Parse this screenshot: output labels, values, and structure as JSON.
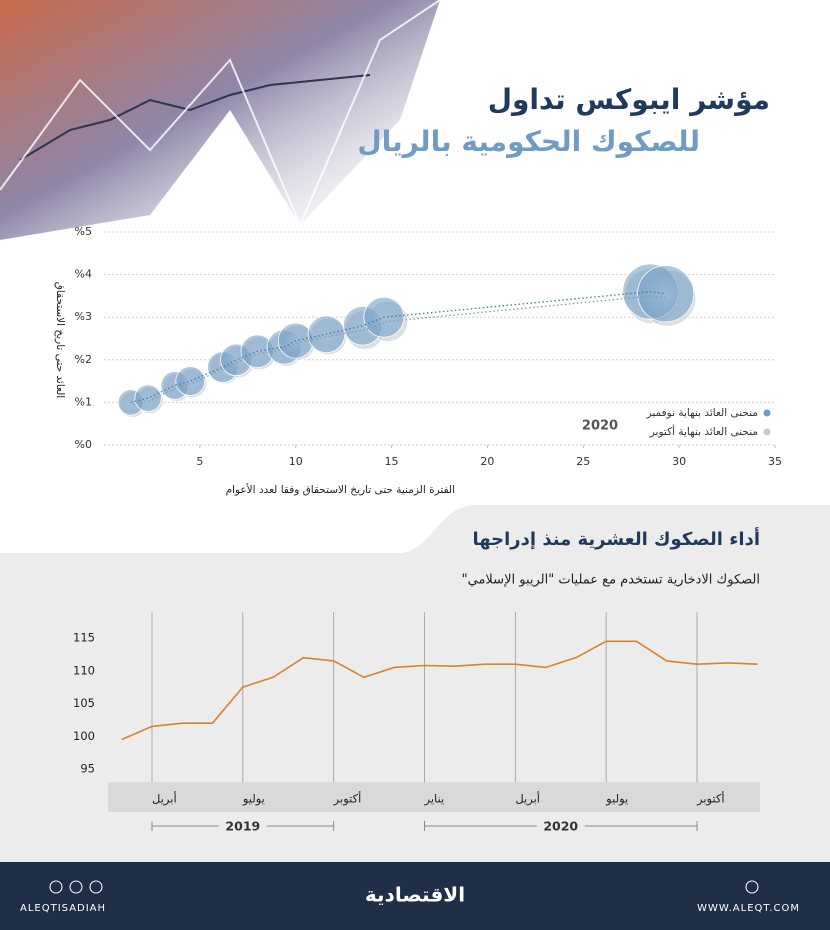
{
  "header": {
    "title_line1": "مؤشر ايبوكس تداول",
    "title_line2": "للصكوك الحكومية بالريال"
  },
  "chart_data": [
    {
      "type": "scatter",
      "annotation": "2020",
      "x_label": "الفترة الزمنية حتى تاريخ الاستحقاق وفقا لعدد الأعوام",
      "y_label": "العائد حتى تاريخ الاستحقاق",
      "xlim": [
        0,
        35
      ],
      "xticks": [
        5,
        10,
        15,
        20,
        25,
        30,
        35
      ],
      "ylim": [
        0,
        5
      ],
      "yticks": [
        {
          "value": 0,
          "label": "%0"
        },
        {
          "value": 1,
          "label": "%1"
        },
        {
          "value": 2,
          "label": "%2"
        },
        {
          "value": 3,
          "label": "%3"
        },
        {
          "value": 4,
          "label": "%4"
        },
        {
          "value": 5,
          "label": "%5"
        }
      ],
      "grid": true,
      "legend": "bottom-right",
      "series": [
        {
          "name": "منحنى العائد بنهاية أكتوبر",
          "color": "#c4c9d0",
          "x": [
            1.5,
            2.4,
            3.8,
            4.6,
            6.3,
            7.0,
            8.1,
            9.5,
            10.1,
            11.7,
            13.6,
            14.8,
            28.6,
            29.4
          ],
          "values": [
            0.95,
            1.05,
            1.35,
            1.45,
            1.8,
            1.95,
            2.15,
            2.25,
            2.4,
            2.55,
            2.7,
            2.9,
            3.5,
            3.45
          ]
        },
        {
          "name": "منحنى العائد بنهاية نوفمبر",
          "color": "#6f9cc4",
          "x": [
            1.4,
            2.3,
            3.7,
            4.5,
            6.2,
            6.9,
            8.0,
            9.4,
            10.0,
            11.6,
            13.5,
            14.6,
            28.5,
            29.3
          ],
          "values": [
            1.0,
            1.1,
            1.4,
            1.5,
            1.83,
            2.0,
            2.2,
            2.3,
            2.45,
            2.6,
            2.8,
            3.0,
            3.6,
            3.55
          ]
        }
      ]
    },
    {
      "type": "line",
      "title": "أداء الصكوك العشرية منذ إدراجها",
      "subtitle": "الصكوك الادخارية تستخدم مع عمليات \"الريبو الإسلامي\"",
      "x": [
        "2019-03",
        "2019-04",
        "2019-05",
        "2019-06",
        "2019-07",
        "2019-08",
        "2019-09",
        "2019-10",
        "2019-11",
        "2019-12",
        "2020-01",
        "2020-02",
        "2020-03",
        "2020-04",
        "2020-05",
        "2020-06",
        "2020-07",
        "2020-08",
        "2020-09",
        "2020-10",
        "2020-11",
        "2020-12"
      ],
      "values": [
        99.5,
        101.5,
        102,
        102,
        107.5,
        109,
        112,
        111.5,
        109,
        110.5,
        110.8,
        110.7,
        111,
        111,
        110.5,
        112,
        114.5,
        114.5,
        111.5,
        111,
        111.2,
        111
      ],
      "color": "#d9822b",
      "ylim": [
        95,
        115
      ],
      "yticks": [
        95,
        100,
        105,
        110,
        115
      ],
      "xticks": [
        {
          "value": "2019-04",
          "label": "أبريل"
        },
        {
          "value": "2019-07",
          "label": "يوليو"
        },
        {
          "value": "2019-10",
          "label": "أكتوبر"
        },
        {
          "value": "2020-01",
          "label": "يناير"
        },
        {
          "value": "2020-04",
          "label": "أبريل"
        },
        {
          "value": "2020-07",
          "label": "يوليو"
        },
        {
          "value": "2020-10",
          "label": "أكتوبر"
        }
      ],
      "x_groups": [
        {
          "label": "2019",
          "range": [
            "2019-04",
            "2019-10"
          ]
        },
        {
          "label": "2020",
          "range": [
            "2020-01",
            "2020-10"
          ]
        }
      ]
    }
  ],
  "footer": {
    "handle": "ALEQTISADIAH",
    "brand": "الاقتصادية",
    "website": "WWW.ALEQT.COM"
  }
}
